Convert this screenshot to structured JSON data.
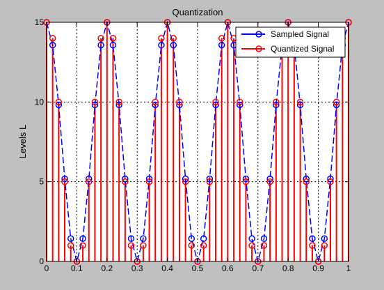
{
  "chart_data": {
    "type": "line",
    "title": "Quantization",
    "xlabel": "",
    "ylabel": "Levels L",
    "xlim": [
      0,
      1
    ],
    "ylim": [
      0,
      15
    ],
    "xticks": [
      "0",
      "0.1",
      "0.2",
      "0.3",
      "0.4",
      "0.5",
      "0.6",
      "0.7",
      "0.8",
      "0.9",
      "1"
    ],
    "yticks": [
      "0",
      "5",
      "10",
      "15"
    ],
    "grid": true,
    "legend_position": "top-right",
    "x": [
      0,
      0.02,
      0.04,
      0.06,
      0.08,
      0.1,
      0.12,
      0.14,
      0.16,
      0.18,
      0.2,
      0.22,
      0.24,
      0.26,
      0.28,
      0.3,
      0.32,
      0.34,
      0.36,
      0.38,
      0.4,
      0.42,
      0.44,
      0.46,
      0.48,
      0.5,
      0.52,
      0.54,
      0.56,
      0.58,
      0.6,
      0.62,
      0.64,
      0.66,
      0.68,
      0.7,
      0.72,
      0.74,
      0.76,
      0.78,
      0.8,
      0.82,
      0.84,
      0.86,
      0.88,
      0.9,
      0.92,
      0.94,
      0.96,
      0.98,
      1
    ],
    "series": [
      {
        "name": "Sampled Signal",
        "color": "#0000ff",
        "style": "dashed-with-circles",
        "values": [
          15,
          13.57,
          9.82,
          5.18,
          1.43,
          0,
          1.43,
          5.18,
          9.82,
          13.57,
          15,
          13.57,
          9.82,
          5.18,
          1.43,
          0,
          1.43,
          5.18,
          9.82,
          13.57,
          15,
          13.57,
          9.82,
          5.18,
          1.43,
          0,
          1.43,
          5.18,
          9.82,
          13.57,
          15,
          13.57,
          9.82,
          5.18,
          1.43,
          0,
          1.43,
          5.18,
          9.82,
          13.57,
          15,
          13.57,
          9.82,
          5.18,
          1.43,
          0,
          1.43,
          5.18,
          9.82,
          13.57,
          15
        ]
      },
      {
        "name": "Quantized Signal",
        "color": "#ff0000",
        "style": "stem",
        "values": [
          15,
          14,
          10,
          5,
          1,
          0,
          1,
          5,
          10,
          14,
          15,
          14,
          10,
          5,
          1,
          0,
          1,
          5,
          10,
          14,
          15,
          14,
          10,
          5,
          1,
          0,
          1,
          5,
          10,
          14,
          15,
          14,
          10,
          5,
          1,
          0,
          1,
          5,
          10,
          14,
          15,
          14,
          10,
          5,
          1,
          0,
          1,
          5,
          10,
          14,
          15
        ]
      }
    ]
  }
}
